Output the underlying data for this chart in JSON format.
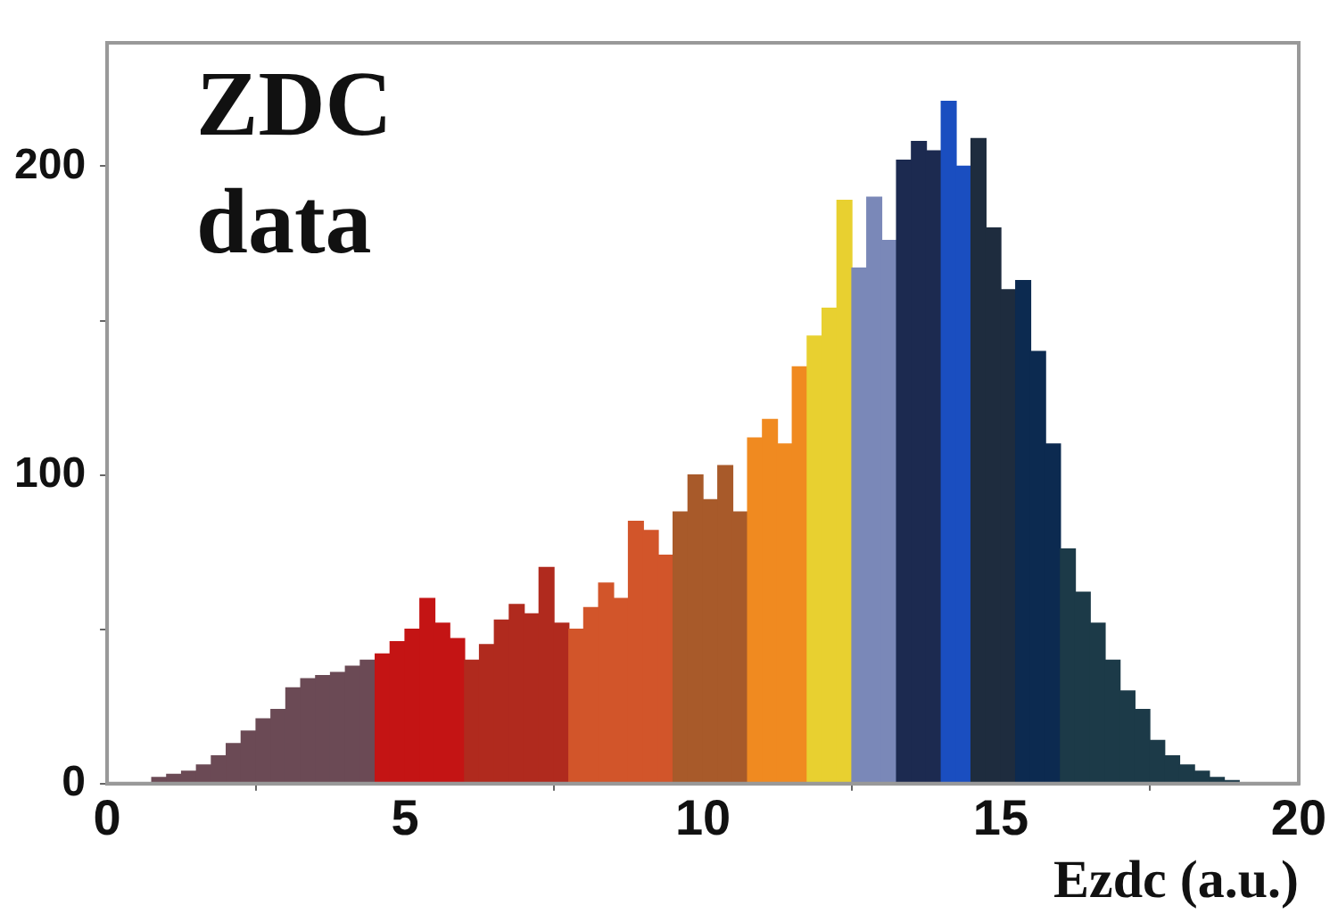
{
  "chart_data": {
    "type": "histogram",
    "xlabel": "Ezdc (a.u.)",
    "annotations": [
      "ZDC",
      "data"
    ],
    "bins": [
      0.5,
      0.75,
      1,
      1.25,
      1.5,
      1.75,
      2,
      2.25,
      2.5,
      2.75,
      3,
      3.25,
      3.5,
      3.75,
      4,
      4.25,
      4.5,
      4.75,
      5,
      5.25,
      5.5,
      5.75,
      6,
      6.25,
      6.5,
      6.75,
      7,
      7.25,
      7.5,
      7.75,
      8,
      8.25,
      8.5,
      8.75,
      9,
      9.25,
      9.5,
      9.75,
      10,
      10.25,
      10.5,
      10.75,
      11,
      11.25,
      11.5,
      11.75,
      12,
      12.25,
      12.5,
      12.75,
      13,
      13.25,
      13.5,
      13.75,
      14,
      14.25,
      14.5,
      14.75,
      15,
      15.25,
      15.5,
      15.75,
      16,
      16.25,
      16.5,
      16.75,
      17,
      17.25,
      17.5,
      17.75,
      18,
      18.25,
      18.5,
      18.75,
      19
    ],
    "values": [
      null,
      2,
      3,
      4,
      6,
      9,
      13,
      17,
      21,
      24,
      31,
      34,
      35,
      36,
      38,
      40,
      42,
      46,
      50,
      60,
      52,
      47,
      40,
      45,
      53,
      58,
      55,
      70,
      52,
      50,
      57,
      65,
      60,
      85,
      82,
      74,
      88,
      100,
      92,
      103,
      88,
      112,
      118,
      110,
      135,
      145,
      154,
      189,
      167,
      190,
      176,
      202,
      208,
      205,
      221,
      200,
      209,
      180,
      160,
      163,
      140,
      110,
      76,
      62,
      52,
      40,
      30,
      24,
      14,
      9,
      6,
      4,
      2,
      1
    ],
    "colors": [
      "#6b4a55",
      "#6b4a55",
      "#6b4a55",
      "#6b4a55",
      "#6b4a55",
      "#6b4a55",
      "#6b4a55",
      "#6b4a55",
      "#6b4a55",
      "#6b4a55",
      "#6b4a55",
      "#6b4a55",
      "#6b4a55",
      "#6b4a55",
      "#6b4a55",
      "#6b4a55",
      "#c41414",
      "#c41414",
      "#c41414",
      "#c41414",
      "#c41414",
      "#c41414",
      "#b02a1e",
      "#b02a1e",
      "#b02a1e",
      "#b02a1e",
      "#b02a1e",
      "#b02a1e",
      "#b02a1e",
      "#d2552a",
      "#d2552a",
      "#d2552a",
      "#d2552a",
      "#d2552a",
      "#d2552a",
      "#d2552a",
      "#a85a2a",
      "#a85a2a",
      "#a85a2a",
      "#a85a2a",
      "#a85a2a",
      "#f08a20",
      "#f08a20",
      "#f08a20",
      "#f08a20",
      "#e8d030",
      "#e8d030",
      "#e8d030",
      "#7a88b8",
      "#7a88b8",
      "#7a88b8",
      "#1c2a50",
      "#1c2a50",
      "#1c2a50",
      "#1a4ec0",
      "#1a4ec0",
      "#1e2c3e",
      "#1e2c3e",
      "#1e2c3e",
      "#0c2a50",
      "#0c2a50",
      "#0c2a50",
      "#1c3a48",
      "#1c3a48",
      "#1c3a48",
      "#1c3a48",
      "#1c3a48",
      "#1c3a48",
      "#1c3a48",
      "#1c3a48",
      "#1c3a48",
      "#1c3a48",
      "#1c3a48",
      "#1c3a48"
    ],
    "xlim": [
      0,
      20
    ],
    "xticks": [
      0,
      5,
      10,
      15,
      20
    ],
    "ylim": [
      0,
      240
    ],
    "yticks": [
      0,
      {
        "value": 50,
        "label": null
      },
      100,
      {
        "value": 150,
        "label": null
      },
      200
    ],
    "grid": false,
    "legend": false
  }
}
